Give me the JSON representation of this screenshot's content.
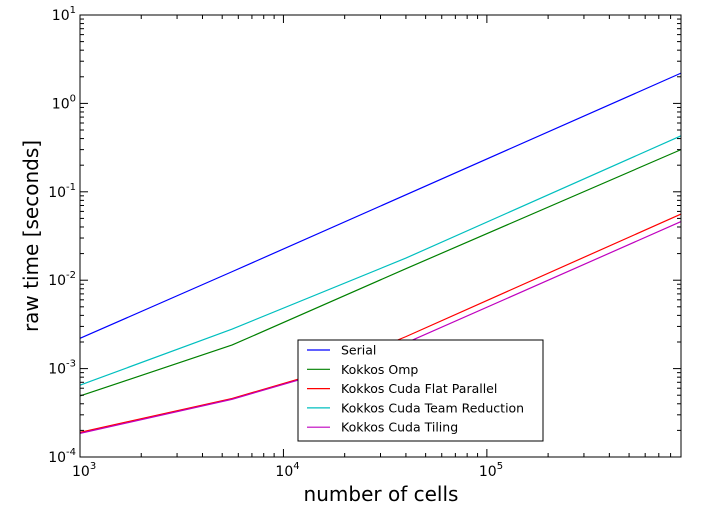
{
  "chart_data": {
    "type": "line",
    "title": "",
    "xlabel": "number of cells",
    "ylabel": "raw time [seconds]",
    "xscale": "log",
    "yscale": "log",
    "xlim": [
      1000,
      900000
    ],
    "ylim": [
      0.0001,
      10
    ],
    "grid": false,
    "legend_position": "lower-center",
    "x_ticks": [
      {
        "value": 1000,
        "base": "10",
        "exp": "3"
      },
      {
        "value": 10000,
        "base": "10",
        "exp": "4"
      },
      {
        "value": 100000,
        "base": "10",
        "exp": "5"
      }
    ],
    "y_ticks": [
      {
        "value": 0.0001,
        "base": "10",
        "exp": "-4"
      },
      {
        "value": 0.001,
        "base": "10",
        "exp": "-3"
      },
      {
        "value": 0.01,
        "base": "10",
        "exp": "-2"
      },
      {
        "value": 0.1,
        "base": "10",
        "exp": "-1"
      },
      {
        "value": 1,
        "base": "10",
        "exp": "0"
      },
      {
        "value": 10,
        "base": "10",
        "exp": "1"
      }
    ],
    "series": [
      {
        "name": "Serial",
        "color": "#0000ff",
        "points": [
          [
            1000,
            0.0022
          ],
          [
            5600,
            0.0125
          ],
          [
            900000,
            2.2
          ]
        ]
      },
      {
        "name": "Kokkos Omp",
        "color": "#008000",
        "points": [
          [
            1000,
            0.00049
          ],
          [
            5600,
            0.00185
          ],
          [
            40000,
            0.0135
          ],
          [
            900000,
            0.3
          ]
        ]
      },
      {
        "name": "Kokkos Cuda Flat Parallel",
        "color": "#ff0000",
        "points": [
          [
            1000,
            0.00019
          ],
          [
            5600,
            0.00046
          ],
          [
            14000,
            0.00085
          ],
          [
            40000,
            0.0023
          ],
          [
            900000,
            0.056
          ]
        ]
      },
      {
        "name": "Kokkos Cuda Team Reduction",
        "color": "#00bfbf",
        "points": [
          [
            1000,
            0.00065
          ],
          [
            5600,
            0.0028
          ],
          [
            40000,
            0.0178
          ],
          [
            900000,
            0.43
          ]
        ]
      },
      {
        "name": "Kokkos Cuda Tiling",
        "color": "#bf00bf",
        "points": [
          [
            1000,
            0.000185
          ],
          [
            5600,
            0.00045
          ],
          [
            14000,
            0.00083
          ],
          [
            40000,
            0.00195
          ],
          [
            900000,
            0.046
          ]
        ]
      }
    ]
  }
}
